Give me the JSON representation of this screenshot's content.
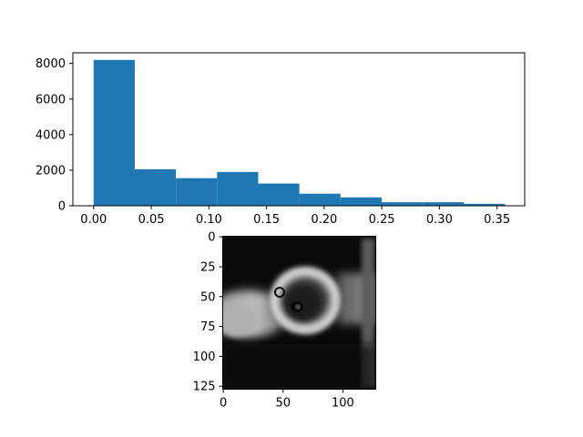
{
  "chart_data": [
    {
      "type": "bar",
      "subtype": "histogram",
      "title": "",
      "xlabel": "",
      "ylabel": "",
      "xlim": [
        -0.018,
        0.374
      ],
      "ylim": [
        0,
        8600
      ],
      "bins": [
        {
          "start": 0.0,
          "end": 0.0357,
          "count": 8200
        },
        {
          "start": 0.0357,
          "end": 0.0714,
          "count": 2050
        },
        {
          "start": 0.0714,
          "end": 0.1071,
          "count": 1550
        },
        {
          "start": 0.1071,
          "end": 0.1428,
          "count": 1900
        },
        {
          "start": 0.1428,
          "end": 0.1785,
          "count": 1250
        },
        {
          "start": 0.1785,
          "end": 0.2142,
          "count": 680
        },
        {
          "start": 0.2142,
          "end": 0.2499,
          "count": 470
        },
        {
          "start": 0.2499,
          "end": 0.2856,
          "count": 200
        },
        {
          "start": 0.2856,
          "end": 0.3213,
          "count": 200
        },
        {
          "start": 0.3213,
          "end": 0.357,
          "count": 110
        }
      ],
      "xticks": [
        0.0,
        0.05,
        0.1,
        0.15,
        0.2,
        0.25,
        0.3,
        0.35
      ],
      "xtick_labels": [
        "0.00",
        "0.05",
        "0.10",
        "0.15",
        "0.20",
        "0.25",
        "0.30",
        "0.35"
      ],
      "yticks": [
        0,
        2000,
        4000,
        6000,
        8000
      ],
      "ytick_labels": [
        "0",
        "2000",
        "4000",
        "6000",
        "8000"
      ],
      "bar_color": "#1f77b4",
      "grid": false
    },
    {
      "type": "heatmap",
      "subtype": "grayscale-image",
      "title": "",
      "image_size": [
        128,
        128
      ],
      "colormap": "gray",
      "xlim": [
        0,
        127
      ],
      "ylim": [
        127,
        0
      ],
      "xticks": [
        0,
        50,
        100
      ],
      "xtick_labels": [
        "0",
        "50",
        "100"
      ],
      "yticks": [
        0,
        25,
        50,
        75,
        100,
        125
      ],
      "ytick_labels": [
        "0",
        "25",
        "50",
        "75",
        "100",
        "125"
      ]
    }
  ]
}
